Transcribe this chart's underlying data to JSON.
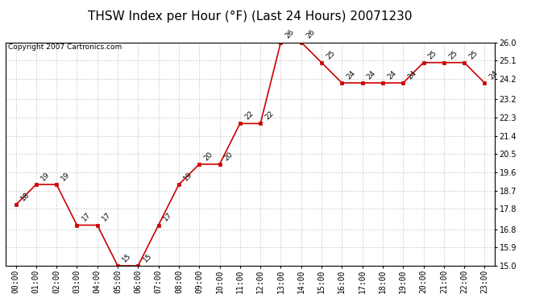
{
  "title": "THSW Index per Hour (°F) (Last 24 Hours) 20071230",
  "copyright": "Copyright 2007 Cartronics.com",
  "hours": [
    "00:00",
    "01:00",
    "02:00",
    "03:00",
    "04:00",
    "05:00",
    "06:00",
    "07:00",
    "08:00",
    "09:00",
    "10:00",
    "11:00",
    "12:00",
    "13:00",
    "14:00",
    "15:00",
    "16:00",
    "17:00",
    "18:00",
    "19:00",
    "20:00",
    "21:00",
    "22:00",
    "23:00"
  ],
  "values": [
    18,
    19,
    19,
    17,
    17,
    15,
    15,
    17,
    19,
    20,
    20,
    22,
    22,
    26,
    26,
    25,
    24,
    24,
    24,
    24,
    25,
    25,
    25,
    24
  ],
  "ylim": [
    15.0,
    26.0
  ],
  "yticks": [
    15.0,
    15.9,
    16.8,
    17.8,
    18.7,
    19.6,
    20.5,
    21.4,
    22.3,
    23.2,
    24.2,
    25.1,
    26.0
  ],
  "line_color": "#cc0000",
  "marker_color": "#cc0000",
  "bg_color": "#ffffff",
  "grid_color": "#cccccc",
  "title_fontsize": 11,
  "label_fontsize": 6.5,
  "tick_fontsize": 7,
  "copyright_fontsize": 6.5
}
